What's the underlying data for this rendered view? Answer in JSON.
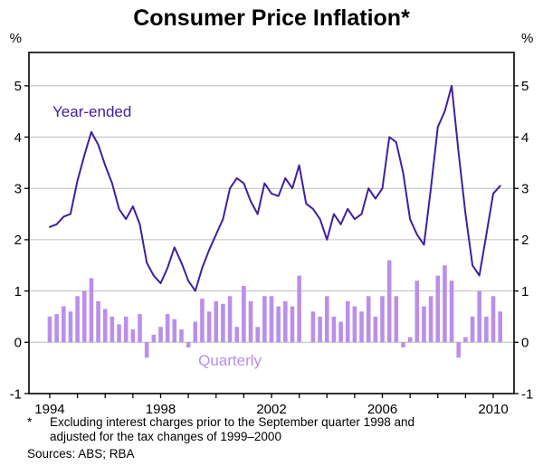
{
  "title": "Consumer Price Inflation*",
  "footnote": {
    "marker": "*",
    "line1": "Excluding interest charges prior to the September quarter 1998 and",
    "line2": "adjusted for the tax changes of 1999–2000"
  },
  "sources": "Sources: ABS; RBA",
  "colors": {
    "line": "#41209B",
    "bar": "#BA8FE8",
    "grid": "#BDBDBD",
    "axis": "#000000"
  },
  "chart_data": {
    "type": "line",
    "title": "Consumer Price Inflation*",
    "unit": "%",
    "grid": "horizontal",
    "legend": "none",
    "ylim": [
      -1,
      5
    ],
    "yticks": [
      -1,
      0,
      1,
      2,
      3,
      4,
      5
    ],
    "xlim": [
      1993.25,
      2010.75
    ],
    "xticks": [
      1994,
      1998,
      2002,
      2006,
      2010
    ],
    "x_minor_tick_step": 1,
    "x": [
      1994.0,
      1994.25,
      1994.5,
      1994.75,
      1995.0,
      1995.25,
      1995.5,
      1995.75,
      1996.0,
      1996.25,
      1996.5,
      1996.75,
      1997.0,
      1997.25,
      1997.5,
      1997.75,
      1998.0,
      1998.25,
      1998.5,
      1998.75,
      1999.0,
      1999.25,
      1999.5,
      1999.75,
      2000.0,
      2000.25,
      2000.5,
      2000.75,
      2001.0,
      2001.25,
      2001.5,
      2001.75,
      2002.0,
      2002.25,
      2002.5,
      2002.75,
      2003.0,
      2003.25,
      2003.5,
      2003.75,
      2004.0,
      2004.25,
      2004.5,
      2004.75,
      2005.0,
      2005.25,
      2005.5,
      2005.75,
      2006.0,
      2006.25,
      2006.5,
      2006.75,
      2007.0,
      2007.25,
      2007.5,
      2007.75,
      2008.0,
      2008.25,
      2008.5,
      2008.75,
      2009.0,
      2009.25,
      2009.5,
      2009.75,
      2010.0,
      2010.25
    ],
    "series": [
      {
        "name": "Year-ended",
        "type": "line",
        "color": "#41209B",
        "values": [
          2.25,
          2.3,
          2.45,
          2.5,
          3.15,
          3.65,
          4.1,
          3.85,
          3.45,
          3.1,
          2.6,
          2.4,
          2.65,
          2.3,
          1.55,
          1.3,
          1.15,
          1.45,
          1.85,
          1.55,
          1.2,
          1.0,
          1.45,
          1.8,
          2.1,
          2.4,
          3.0,
          3.2,
          3.1,
          2.75,
          2.5,
          3.1,
          2.9,
          2.85,
          3.2,
          3.0,
          3.45,
          2.7,
          2.6,
          2.4,
          2.0,
          2.5,
          2.3,
          2.6,
          2.4,
          2.5,
          3.0,
          2.8,
          3.0,
          4.0,
          3.9,
          3.3,
          2.4,
          2.1,
          1.9,
          3.0,
          4.2,
          4.5,
          5.0,
          3.7,
          2.5,
          1.5,
          1.3,
          2.1,
          2.9,
          3.05
        ]
      },
      {
        "name": "Quarterly",
        "type": "bar",
        "color": "#BA8FE8",
        "values": [
          0.5,
          0.55,
          0.7,
          0.6,
          0.9,
          1.0,
          1.25,
          0.8,
          0.65,
          0.5,
          0.35,
          0.5,
          0.25,
          0.55,
          -0.3,
          0.15,
          0.3,
          0.55,
          0.45,
          0.25,
          -0.1,
          0.4,
          0.85,
          0.6,
          0.8,
          0.75,
          0.9,
          0.3,
          1.1,
          0.8,
          0.3,
          0.9,
          0.9,
          0.7,
          0.8,
          0.7,
          1.3,
          0.0,
          0.6,
          0.5,
          0.9,
          0.5,
          0.4,
          0.8,
          0.7,
          0.6,
          0.9,
          0.5,
          0.9,
          1.6,
          0.9,
          -0.1,
          0.1,
          1.2,
          0.7,
          0.9,
          1.3,
          1.5,
          1.2,
          -0.3,
          0.1,
          0.5,
          1.0,
          0.5,
          0.9,
          0.6
        ]
      }
    ],
    "annotations": [
      {
        "text": "Year-ended",
        "x": 1994.1,
        "y": 4.4,
        "anchor": "start",
        "color": "#41209B"
      },
      {
        "text": "Quarterly",
        "x": 2000.5,
        "y": -0.45,
        "anchor": "middle",
        "color": "#BA8FE8"
      }
    ]
  }
}
